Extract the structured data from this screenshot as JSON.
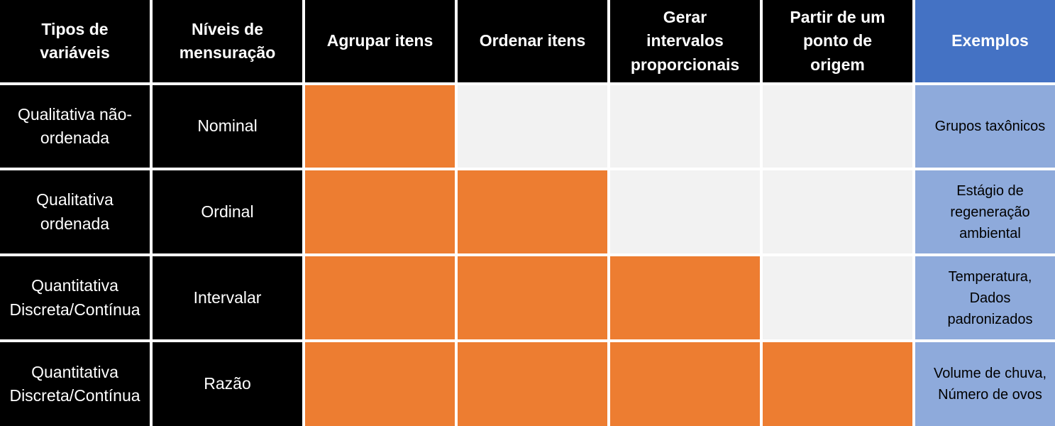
{
  "colors": {
    "header_bg": "#000000",
    "examples_header_bg": "#4472c4",
    "examples_cell_bg": "#8eaadb",
    "applies": "#ed7d31",
    "not_applies": "#f2f2f2",
    "gap": "#ffffff"
  },
  "headers": {
    "tipos": "Tipos de variáveis",
    "niveis": "Níveis de\nmensuração",
    "agrupar": "Agrupar itens",
    "ordenar": "Ordenar itens",
    "gerar": "Gerar\nintervalos\nproporcionais",
    "partir": "Partir de um\nponto de\norigem",
    "exemplos": "Exemplos"
  },
  "rows": [
    {
      "tipo": "Qualitativa não-\nordenada",
      "nivel": "Nominal",
      "agrupar": true,
      "ordenar": false,
      "gerar": false,
      "partir": false,
      "exemplo": "Grupos taxônicos"
    },
    {
      "tipo": "Qualitativa\nordenada",
      "nivel": "Ordinal",
      "agrupar": true,
      "ordenar": true,
      "gerar": false,
      "partir": false,
      "exemplo": "Estágio de\nregeneração\nambiental"
    },
    {
      "tipo": "Quantitativa\nDiscreta/Contínua",
      "nivel": "Intervalar",
      "agrupar": true,
      "ordenar": true,
      "gerar": true,
      "partir": false,
      "exemplo": "Temperatura,\nDados\npadronizados"
    },
    {
      "tipo": "Quantitativa\nDiscreta/Contínua",
      "nivel": "Razão",
      "agrupar": true,
      "ordenar": true,
      "gerar": true,
      "partir": true,
      "exemplo": "Volume de chuva,\nNúmero de ovos"
    }
  ]
}
